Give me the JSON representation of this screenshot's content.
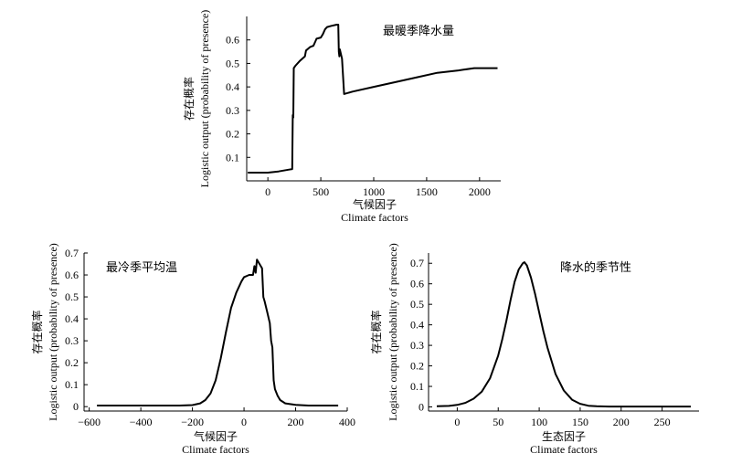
{
  "chart_data": [
    {
      "type": "line",
      "title": "最暖季降水量",
      "xlabel_cn": "气候因子",
      "xlabel_en": "Climate factors",
      "ylabel_cn": "存在概率",
      "ylabel_en": "Logistic output (probability of presence)",
      "xlim": [
        -200,
        2200
      ],
      "ylim": [
        0,
        0.7
      ],
      "xticks": [
        0,
        500,
        1000,
        1500,
        2000
      ],
      "yticks": [
        0.1,
        0.2,
        0.3,
        0.4,
        0.5,
        0.6
      ],
      "x": [
        -190,
        0,
        100,
        200,
        230,
        235,
        240,
        245,
        260,
        300,
        350,
        360,
        400,
        430,
        450,
        460,
        500,
        520,
        540,
        560,
        600,
        650,
        665,
        670,
        675,
        680,
        700,
        720,
        800,
        1000,
        1200,
        1400,
        1600,
        1800,
        1950,
        2000,
        2100,
        2170
      ],
      "y": [
        0.035,
        0.035,
        0.04,
        0.048,
        0.05,
        0.28,
        0.27,
        0.48,
        0.49,
        0.51,
        0.53,
        0.555,
        0.57,
        0.575,
        0.595,
        0.605,
        0.61,
        0.625,
        0.645,
        0.655,
        0.66,
        0.665,
        0.665,
        0.55,
        0.53,
        0.56,
        0.52,
        0.37,
        0.38,
        0.4,
        0.42,
        0.44,
        0.46,
        0.47,
        0.48,
        0.48,
        0.48,
        0.48
      ]
    },
    {
      "type": "line",
      "title": "最冷季平均温",
      "xlabel_cn": "气候因子",
      "xlabel_en": "Climate factors",
      "ylabel_cn": "存在概率",
      "ylabel_en": "Logistic output (probability of presence)",
      "xlim": [
        -620,
        400
      ],
      "ylim": [
        -0.02,
        0.7
      ],
      "xticks": [
        -600,
        -400,
        -200,
        0,
        200,
        400
      ],
      "yticks": [
        0,
        0.1,
        0.2,
        0.3,
        0.4,
        0.5,
        0.6,
        0.7
      ],
      "x": [
        -570,
        -400,
        -250,
        -200,
        -170,
        -150,
        -130,
        -110,
        -90,
        -70,
        -50,
        -30,
        -10,
        0,
        20,
        30,
        35,
        40,
        45,
        50,
        55,
        60,
        65,
        70,
        75,
        80,
        90,
        100,
        105,
        110,
        115,
        120,
        130,
        140,
        160,
        200,
        250,
        300,
        365
      ],
      "y": [
        0.005,
        0.005,
        0.005,
        0.007,
        0.015,
        0.03,
        0.06,
        0.12,
        0.22,
        0.34,
        0.45,
        0.52,
        0.57,
        0.59,
        0.6,
        0.6,
        0.6,
        0.64,
        0.61,
        0.67,
        0.66,
        0.65,
        0.64,
        0.63,
        0.5,
        0.48,
        0.43,
        0.38,
        0.3,
        0.27,
        0.12,
        0.08,
        0.05,
        0.03,
        0.015,
        0.008,
        0.005,
        0.005,
        0.005
      ]
    },
    {
      "type": "line",
      "title": "降水的季节性",
      "xlabel_cn": "生态因子",
      "xlabel_en": "Climate factors",
      "ylabel_cn": "存在概率",
      "ylabel_en": "Logistic output (probability of presence)",
      "xlim": [
        -35,
        295
      ],
      "ylim": [
        -0.02,
        0.75
      ],
      "xticks": [
        0,
        50,
        100,
        150,
        200,
        250
      ],
      "yticks": [
        0,
        0.1,
        0.2,
        0.3,
        0.4,
        0.5,
        0.6,
        0.7
      ],
      "x": [
        -25,
        -10,
        0,
        10,
        20,
        30,
        40,
        50,
        55,
        60,
        65,
        70,
        75,
        80,
        82,
        85,
        90,
        95,
        100,
        105,
        110,
        120,
        130,
        140,
        150,
        160,
        170,
        185,
        200,
        250,
        285
      ],
      "y": [
        0.003,
        0.005,
        0.01,
        0.02,
        0.04,
        0.075,
        0.14,
        0.25,
        0.33,
        0.42,
        0.52,
        0.61,
        0.67,
        0.7,
        0.705,
        0.69,
        0.63,
        0.55,
        0.46,
        0.37,
        0.29,
        0.16,
        0.08,
        0.035,
        0.015,
        0.006,
        0.003,
        0.002,
        0.002,
        0.002,
        0.002
      ]
    }
  ]
}
